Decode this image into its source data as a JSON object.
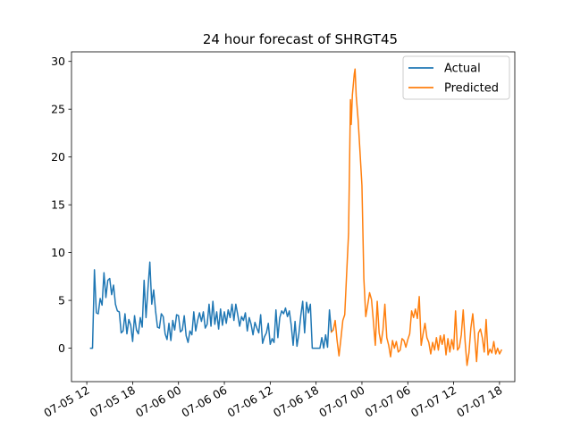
{
  "chart_data": {
    "type": "line",
    "title": "24 hour forecast of SHRGT45",
    "xlabel": "",
    "ylabel": "",
    "x_axis": "datetime (hours)",
    "xlim": [
      "07-05 10:00",
      "07-07 20:00"
    ],
    "ylim": [
      -3.5,
      31
    ],
    "y_ticks": [
      0,
      5,
      10,
      15,
      20,
      25,
      30
    ],
    "x_ticks": [
      {
        "t": 12,
        "label": "07-05 12"
      },
      {
        "t": 18,
        "label": "07-05 18"
      },
      {
        "t": 24,
        "label": "07-06 00"
      },
      {
        "t": 30,
        "label": "07-06 06"
      },
      {
        "t": 36,
        "label": "07-06 12"
      },
      {
        "t": 42,
        "label": "07-06 18"
      },
      {
        "t": 48,
        "label": "07-07 00"
      },
      {
        "t": 54,
        "label": "07-07 06"
      },
      {
        "t": 60,
        "label": "07-07 12"
      },
      {
        "t": 66,
        "label": "07-07 18"
      }
    ],
    "grid": false,
    "legend_position": "top-right",
    "series": [
      {
        "name": "Actual",
        "color": "#1f77b4",
        "points": [
          [
            12.5,
            0.0
          ],
          [
            12.75,
            0.0
          ],
          [
            13.0,
            8.2
          ],
          [
            13.25,
            3.7
          ],
          [
            13.5,
            3.6
          ],
          [
            13.75,
            5.2
          ],
          [
            14.0,
            4.5
          ],
          [
            14.25,
            7.9
          ],
          [
            14.5,
            5.3
          ],
          [
            14.75,
            7.1
          ],
          [
            15.0,
            7.3
          ],
          [
            15.25,
            5.6
          ],
          [
            15.5,
            6.6
          ],
          [
            15.75,
            4.6
          ],
          [
            16.0,
            3.9
          ],
          [
            16.25,
            3.8
          ],
          [
            16.5,
            1.6
          ],
          [
            16.75,
            1.8
          ],
          [
            17.0,
            3.6
          ],
          [
            17.25,
            1.5
          ],
          [
            17.5,
            3.0
          ],
          [
            17.75,
            2.4
          ],
          [
            18.0,
            0.7
          ],
          [
            18.25,
            3.4
          ],
          [
            18.5,
            1.9
          ],
          [
            18.75,
            1.5
          ],
          [
            19.0,
            3.2
          ],
          [
            19.25,
            2.2
          ],
          [
            19.5,
            7.1
          ],
          [
            19.75,
            3.2
          ],
          [
            20.0,
            6.2
          ],
          [
            20.25,
            9.0
          ],
          [
            20.5,
            4.6
          ],
          [
            20.75,
            6.1
          ],
          [
            21.0,
            3.9
          ],
          [
            21.25,
            2.2
          ],
          [
            21.5,
            2.1
          ],
          [
            21.75,
            3.6
          ],
          [
            22.0,
            3.3
          ],
          [
            22.25,
            1.5
          ],
          [
            22.5,
            0.9
          ],
          [
            22.75,
            2.6
          ],
          [
            23.0,
            0.8
          ],
          [
            23.25,
            2.9
          ],
          [
            23.5,
            1.9
          ],
          [
            23.75,
            3.5
          ],
          [
            24.0,
            3.4
          ],
          [
            24.25,
            1.7
          ],
          [
            24.5,
            1.9
          ],
          [
            24.75,
            3.4
          ],
          [
            25.0,
            1.3
          ],
          [
            25.25,
            0.6
          ],
          [
            25.5,
            1.8
          ],
          [
            25.75,
            1.4
          ],
          [
            26.0,
            3.8
          ],
          [
            26.25,
            1.8
          ],
          [
            26.5,
            2.9
          ],
          [
            26.75,
            3.7
          ],
          [
            27.0,
            2.8
          ],
          [
            27.25,
            3.8
          ],
          [
            27.5,
            2.1
          ],
          [
            27.75,
            2.5
          ],
          [
            28.0,
            4.6
          ],
          [
            28.25,
            2.3
          ],
          [
            28.5,
            4.9
          ],
          [
            28.75,
            2.5
          ],
          [
            29.0,
            3.8
          ],
          [
            29.25,
            2.0
          ],
          [
            29.5,
            4.1
          ],
          [
            29.75,
            2.4
          ],
          [
            30.0,
            3.8
          ],
          [
            30.25,
            2.6
          ],
          [
            30.5,
            4.0
          ],
          [
            30.75,
            3.2
          ],
          [
            31.0,
            4.6
          ],
          [
            31.25,
            2.9
          ],
          [
            31.5,
            4.6
          ],
          [
            31.75,
            3.5
          ],
          [
            32.0,
            2.3
          ],
          [
            32.25,
            3.3
          ],
          [
            32.5,
            2.9
          ],
          [
            32.75,
            3.7
          ],
          [
            33.0,
            1.8
          ],
          [
            33.25,
            3.2
          ],
          [
            33.5,
            2.5
          ],
          [
            33.75,
            1.4
          ],
          [
            34.0,
            2.7
          ],
          [
            34.25,
            2.1
          ],
          [
            34.5,
            1.6
          ],
          [
            34.75,
            3.5
          ],
          [
            35.0,
            0.5
          ],
          [
            35.25,
            1.2
          ],
          [
            35.5,
            1.6
          ],
          [
            35.75,
            2.6
          ],
          [
            36.0,
            0.4
          ],
          [
            36.25,
            1.0
          ],
          [
            36.5,
            0.6
          ],
          [
            36.75,
            4.0
          ],
          [
            37.0,
            1.1
          ],
          [
            37.25,
            3.2
          ],
          [
            37.5,
            3.9
          ],
          [
            37.75,
            3.6
          ],
          [
            38.0,
            4.2
          ],
          [
            38.25,
            3.3
          ],
          [
            38.5,
            3.9
          ],
          [
            38.75,
            2.4
          ],
          [
            39.0,
            0.3
          ],
          [
            39.25,
            2.8
          ],
          [
            39.5,
            0.2
          ],
          [
            39.75,
            1.5
          ],
          [
            40.0,
            3.4
          ],
          [
            40.25,
            4.9
          ],
          [
            40.5,
            1.6
          ],
          [
            40.75,
            4.8
          ],
          [
            41.0,
            3.7
          ],
          [
            41.25,
            4.6
          ],
          [
            41.5,
            0.0
          ],
          [
            41.75,
            0.0
          ],
          [
            42.0,
            0.0
          ],
          [
            42.25,
            0.0
          ],
          [
            42.5,
            0.0
          ],
          [
            42.75,
            1.1
          ],
          [
            43.0,
            0.0
          ],
          [
            43.25,
            1.4
          ],
          [
            43.5,
            0.1
          ],
          [
            43.75,
            4.0
          ],
          [
            44.0,
            1.7
          ]
        ]
      },
      {
        "name": "Predicted",
        "color": "#ff7f0e",
        "points": [
          [
            44.0,
            1.7
          ],
          [
            44.25,
            1.9
          ],
          [
            44.5,
            2.9
          ],
          [
            44.75,
            0.8
          ],
          [
            45.0,
            -0.8
          ],
          [
            45.25,
            1.0
          ],
          [
            45.5,
            2.9
          ],
          [
            45.75,
            3.5
          ],
          [
            46.0,
            7.8
          ],
          [
            46.25,
            12.0
          ],
          [
            46.5,
            26.0
          ],
          [
            46.6,
            23.4
          ],
          [
            46.75,
            26.5
          ],
          [
            47.0,
            28.7
          ],
          [
            47.1,
            29.2
          ],
          [
            47.25,
            26.4
          ],
          [
            47.5,
            23.9
          ],
          [
            47.75,
            20.5
          ],
          [
            48.0,
            17.0
          ],
          [
            48.25,
            7.3
          ],
          [
            48.5,
            3.3
          ],
          [
            48.75,
            4.5
          ],
          [
            49.0,
            5.8
          ],
          [
            49.25,
            5.1
          ],
          [
            49.5,
            2.8
          ],
          [
            49.75,
            0.3
          ],
          [
            50.0,
            4.9
          ],
          [
            50.25,
            1.6
          ],
          [
            50.5,
            0.5
          ],
          [
            50.75,
            1.9
          ],
          [
            51.0,
            4.6
          ],
          [
            51.25,
            1.1
          ],
          [
            51.5,
            0.3
          ],
          [
            51.75,
            -0.9
          ],
          [
            52.0,
            0.8
          ],
          [
            52.25,
            0.0
          ],
          [
            52.5,
            0.7
          ],
          [
            52.75,
            -0.4
          ],
          [
            53.0,
            -0.2
          ],
          [
            53.25,
            1.0
          ],
          [
            53.5,
            0.8
          ],
          [
            53.75,
            0.1
          ],
          [
            54.0,
            0.9
          ],
          [
            54.25,
            1.5
          ],
          [
            54.5,
            3.9
          ],
          [
            54.75,
            3.2
          ],
          [
            55.0,
            4.1
          ],
          [
            55.25,
            3.1
          ],
          [
            55.5,
            5.4
          ],
          [
            55.75,
            0.3
          ],
          [
            56.0,
            1.5
          ],
          [
            56.25,
            2.6
          ],
          [
            56.5,
            1.1
          ],
          [
            56.75,
            0.6
          ],
          [
            57.0,
            -0.6
          ],
          [
            57.25,
            0.6
          ],
          [
            57.5,
            -0.2
          ],
          [
            57.75,
            1.1
          ],
          [
            58.0,
            -0.2
          ],
          [
            58.25,
            1.3
          ],
          [
            58.5,
            0.4
          ],
          [
            58.75,
            1.4
          ],
          [
            59.0,
            -0.7
          ],
          [
            59.25,
            1.0
          ],
          [
            59.5,
            -0.4
          ],
          [
            59.75,
            0.9
          ],
          [
            60.0,
            -0.1
          ],
          [
            60.25,
            3.9
          ],
          [
            60.5,
            -0.2
          ],
          [
            60.75,
            0.1
          ],
          [
            61.0,
            1.4
          ],
          [
            61.25,
            4.0
          ],
          [
            61.5,
            0.7
          ],
          [
            61.75,
            -1.8
          ],
          [
            62.0,
            -0.5
          ],
          [
            62.25,
            2.1
          ],
          [
            62.5,
            3.6
          ],
          [
            62.75,
            1.3
          ],
          [
            63.0,
            -1.4
          ],
          [
            63.25,
            1.6
          ],
          [
            63.5,
            2.0
          ],
          [
            63.75,
            1.1
          ],
          [
            64.0,
            -0.4
          ],
          [
            64.25,
            3.0
          ],
          [
            64.5,
            -0.7
          ],
          [
            64.75,
            -0.1
          ],
          [
            65.0,
            -0.5
          ],
          [
            65.25,
            0.7
          ],
          [
            65.5,
            -0.6
          ],
          [
            65.75,
            0.0
          ],
          [
            66.0,
            -0.6
          ],
          [
            66.25,
            -0.2
          ]
        ]
      }
    ]
  }
}
